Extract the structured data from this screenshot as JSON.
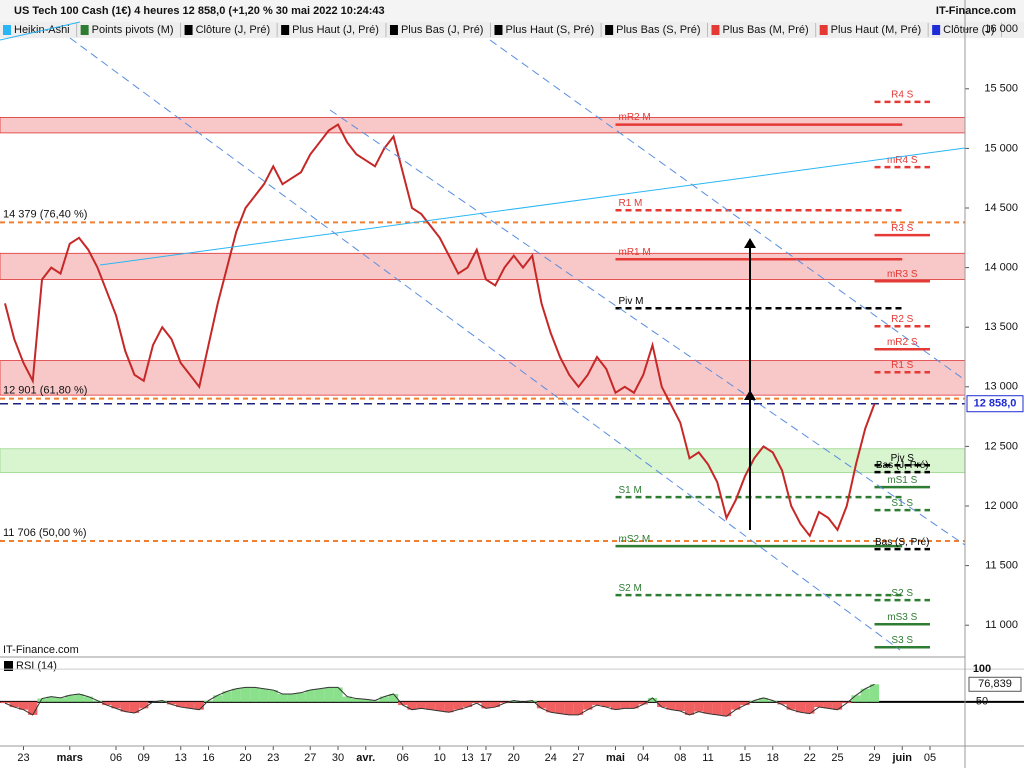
{
  "header": {
    "title": "US Tech 100 Cash (1€) 4 heures 12 858,0 (+1,20 % 30 mai 2022 10:24:43",
    "brand": "IT-Finance.com"
  },
  "toolbar": [
    {
      "label": "Heikin-Ashi",
      "color": "#29b6f6"
    },
    {
      "label": "Points pivots (M)",
      "color": "#2e7d32"
    },
    {
      "label": "Clôture (J, Pré)",
      "color": "#000000"
    },
    {
      "label": "Plus Haut (J, Pré)",
      "color": "#000000"
    },
    {
      "label": "Plus Bas (J, Pré)",
      "color": "#000000"
    },
    {
      "label": "Plus Haut (S, Pré)",
      "color": "#000000"
    },
    {
      "label": "Plus Bas (S, Pré)",
      "color": "#000000"
    },
    {
      "label": "Plus Bas (M, Pré)",
      "color": "#e53935"
    },
    {
      "label": "Plus Haut (M, Pré)",
      "color": "#e53935"
    },
    {
      "label": "Clôture (J)",
      "color": "#1e2bd6"
    }
  ],
  "chart_data": [
    {
      "type": "line",
      "watermark": "IT-Finance.com",
      "categories": [
        null,
        null,
        "23",
        null,
        null,
        null,
        null,
        "mars",
        null,
        null,
        null,
        null,
        "06",
        null,
        null,
        "09",
        null,
        null,
        null,
        "13",
        null,
        null,
        "16",
        null,
        null,
        null,
        "20",
        null,
        null,
        "23",
        null,
        null,
        null,
        "27",
        null,
        null,
        "30",
        null,
        null,
        "avr.",
        null,
        null,
        null,
        "06",
        null,
        null,
        null,
        "10",
        null,
        null,
        "13",
        null,
        "17",
        null,
        null,
        "20",
        null,
        null,
        null,
        "24",
        null,
        null,
        "27",
        null,
        null,
        null,
        "mai",
        null,
        null,
        "04",
        null,
        null,
        null,
        "08",
        null,
        null,
        "11",
        null,
        null,
        null,
        "15",
        null,
        null,
        "18",
        null,
        null,
        null,
        "22",
        null,
        null,
        "25",
        null,
        null,
        null,
        "29",
        null,
        null,
        "juin",
        null,
        null,
        "05",
        null,
        null,
        null
      ],
      "series": [
        {
          "name": "Heikin-Ashi",
          "color": "#c62828",
          "values": [
            13700,
            13400,
            13200,
            13050,
            13900,
            14000,
            13950,
            14200,
            14250,
            14150,
            14000,
            13800,
            13600,
            13300,
            13100,
            13050,
            13350,
            13500,
            13400,
            13200,
            13100,
            13000,
            13350,
            13700,
            14000,
            14300,
            14500,
            14600,
            14700,
            14850,
            14700,
            14750,
            14800,
            14950,
            15050,
            15150,
            15200,
            15050,
            14950,
            14900,
            14850,
            15000,
            15100,
            14800,
            14500,
            14450,
            14350,
            14250,
            14100,
            13950,
            14000,
            14150,
            13900,
            13850,
            14000,
            14100,
            14000,
            14100,
            13700,
            13450,
            13250,
            13100,
            13000,
            13100,
            13250,
            13150,
            12950,
            13000,
            12950,
            13100,
            13350,
            13000,
            12850,
            12700,
            12400,
            12450,
            12350,
            12200,
            11900,
            12050,
            12250,
            12400,
            12500,
            12450,
            12300,
            12000,
            11850,
            11750,
            11950,
            11900,
            11800,
            12000,
            12350,
            12650,
            12858,
            null,
            null,
            null,
            null,
            null,
            null,
            null,
            null,
            null
          ]
        }
      ],
      "ylim": [
        10750,
        16245
      ],
      "yticks": [
        {
          "value": 16000,
          "label": "16 000"
        },
        {
          "value": 15500,
          "label": "15 500"
        },
        {
          "value": 15000,
          "label": "15 000"
        },
        {
          "value": 14500,
          "label": "14 500"
        },
        {
          "value": 14000,
          "label": "14 000"
        },
        {
          "value": 13500,
          "label": "13 500"
        },
        {
          "value": 13000,
          "label": "13 000"
        },
        {
          "value": 12500,
          "label": "12 500"
        },
        {
          "value": 12000,
          "label": "12 000"
        },
        {
          "value": 11500,
          "label": "11 500"
        },
        {
          "value": 11000,
          "label": "11 000"
        }
      ],
      "last_value": {
        "value": 12858,
        "label": "12 858,0"
      },
      "zones": [
        {
          "from": 15130,
          "to": 15260,
          "color": "#f8c8c8"
        },
        {
          "from": 13900,
          "to": 14120,
          "color": "#f8c8c8"
        },
        {
          "from": 12930,
          "to": 13220,
          "color": "#f8c8c8"
        },
        {
          "from": 12280,
          "to": 12480,
          "color": "#d8f5d0"
        }
      ],
      "fib_levels": [
        {
          "value": 14379,
          "label": "14 379 (76,40 %)"
        },
        {
          "value": 12901,
          "label": "12 901 (61,80 %)"
        },
        {
          "value": 11706,
          "label": "11 706 (50,00 %)"
        }
      ],
      "levels": [
        {
          "label": "R4 S",
          "value": 15390,
          "color": "#e53935",
          "dashed": true
        },
        {
          "label": "mR2 M",
          "value": 15200,
          "color": "#e53935",
          "dashed": false
        },
        {
          "label": "mR4 S",
          "value": 14843,
          "color": "#e53935",
          "dashed": true
        },
        {
          "label": "R1 M",
          "value": 14481,
          "color": "#e53935",
          "dashed": true
        },
        {
          "label": "R3 S",
          "value": 14272,
          "color": "#e53935",
          "dashed": false
        },
        {
          "label": "mR1 M",
          "value": 14070,
          "color": "#e53935",
          "dashed": false
        },
        {
          "label": "mR3 S",
          "value": 13886,
          "color": "#e53935",
          "dashed": false
        },
        {
          "label": "Piv M",
          "value": 13659,
          "color": "#000000",
          "dashed": true
        },
        {
          "label": "R2 S",
          "value": 13508,
          "color": "#e53935",
          "dashed": true
        },
        {
          "label": "mR2 S",
          "value": 13315,
          "color": "#e53935",
          "dashed": false
        },
        {
          "label": "R1 S",
          "value": 13122,
          "color": "#e53935",
          "dashed": true
        },
        {
          "label": "Piv S",
          "value": 12342,
          "color": "#000000",
          "dashed": true
        },
        {
          "label": "Bas (J, Pré)",
          "value": 12284,
          "color": "#000000",
          "dashed": true
        },
        {
          "label": "mS1 S",
          "value": 12158,
          "color": "#2e7d32",
          "dashed": false
        },
        {
          "label": "S1 M",
          "value": 12074,
          "color": "#2e7d32",
          "dashed": true
        },
        {
          "label": "S1 S",
          "value": 11965,
          "color": "#2e7d32",
          "dashed": true
        },
        {
          "label": "mS2 M",
          "value": 11663,
          "color": "#2e7d32",
          "dashed": false
        },
        {
          "label": "Bas (S, Pré)",
          "value": 11638,
          "color": "#000000",
          "dashed": true
        },
        {
          "label": "S2 M",
          "value": 11252,
          "color": "#2e7d32",
          "dashed": true
        },
        {
          "label": "S2 S",
          "value": 11210,
          "color": "#2e7d32",
          "dashed": true
        },
        {
          "label": "mS3 S",
          "value": 11008,
          "color": "#2e7d32",
          "dashed": false
        },
        {
          "label": "S3 S",
          "value": 10815,
          "color": "#2e7d32",
          "dashed": false
        }
      ]
    },
    {
      "type": "rsi",
      "title": "RSI (14)",
      "values": [
        48,
        42,
        38,
        30,
        55,
        58,
        56,
        60,
        62,
        58,
        52,
        45,
        40,
        35,
        33,
        40,
        50,
        52,
        46,
        42,
        40,
        38,
        52,
        60,
        66,
        70,
        72,
        72,
        70,
        68,
        62,
        62,
        64,
        68,
        70,
        72,
        72,
        58,
        55,
        54,
        52,
        58,
        62,
        45,
        38,
        40,
        38,
        36,
        34,
        38,
        42,
        48,
        40,
        42,
        48,
        52,
        50,
        52,
        40,
        34,
        32,
        30,
        30,
        38,
        45,
        42,
        38,
        40,
        40,
        46,
        56,
        42,
        38,
        36,
        30,
        35,
        32,
        30,
        28,
        38,
        45,
        52,
        56,
        52,
        46,
        38,
        34,
        32,
        42,
        40,
        38,
        48,
        60,
        70,
        76.839,
        null,
        null,
        null,
        null,
        null,
        null,
        null,
        null,
        null
      ],
      "last_value": {
        "value": 76.839,
        "label": "76,839"
      },
      "ylim": [
        -16,
        117
      ],
      "yticks": [
        100,
        50
      ]
    }
  ]
}
